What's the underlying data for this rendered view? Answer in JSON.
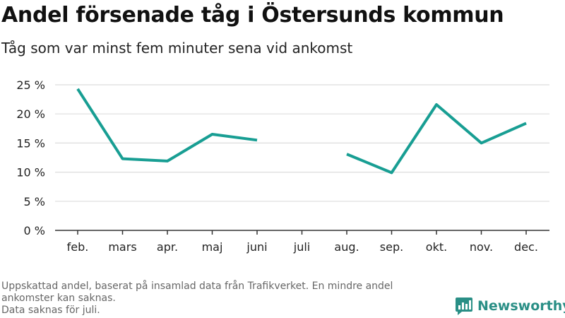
{
  "header": {
    "title": "Andel försenade tåg i Östersunds kommun",
    "subtitle": "Tåg som var minst fem minuter sena vid ankomst"
  },
  "chart_data": {
    "type": "line",
    "title": "Andel försenade tåg i Östersunds kommun",
    "subtitle": "Tåg som var minst fem minuter sena vid ankomst",
    "xlabel": "",
    "ylabel": "",
    "categories": [
      "feb.",
      "mars",
      "apr.",
      "maj",
      "juni",
      "juli",
      "aug.",
      "sep.",
      "okt.",
      "nov.",
      "dec."
    ],
    "series": [
      {
        "values": [
          24.3,
          12.3,
          11.9,
          16.5,
          15.5,
          null,
          13.1,
          9.9,
          21.6,
          15.0,
          18.4
        ],
        "color": "#189e93"
      }
    ],
    "ylim": [
      0,
      25
    ],
    "yticks": [
      0,
      5,
      10,
      15,
      20,
      25
    ],
    "ytick_labels": [
      "0 %",
      "5 %",
      "10 %",
      "15 %",
      "20 %",
      "25 %"
    ],
    "grid": true,
    "gridColor": "#dddddd",
    "axisColor": "#333333"
  },
  "footnotes": [
    "Uppskattad andel, baserat på insamlad data från Trafikverket. En mindre andel ankomster kan saknas.",
    "Data saknas för juli."
  ],
  "brand": {
    "name": "Newsworthy",
    "icon": "bar-chart-logo-icon",
    "color": "#2a8f86"
  }
}
